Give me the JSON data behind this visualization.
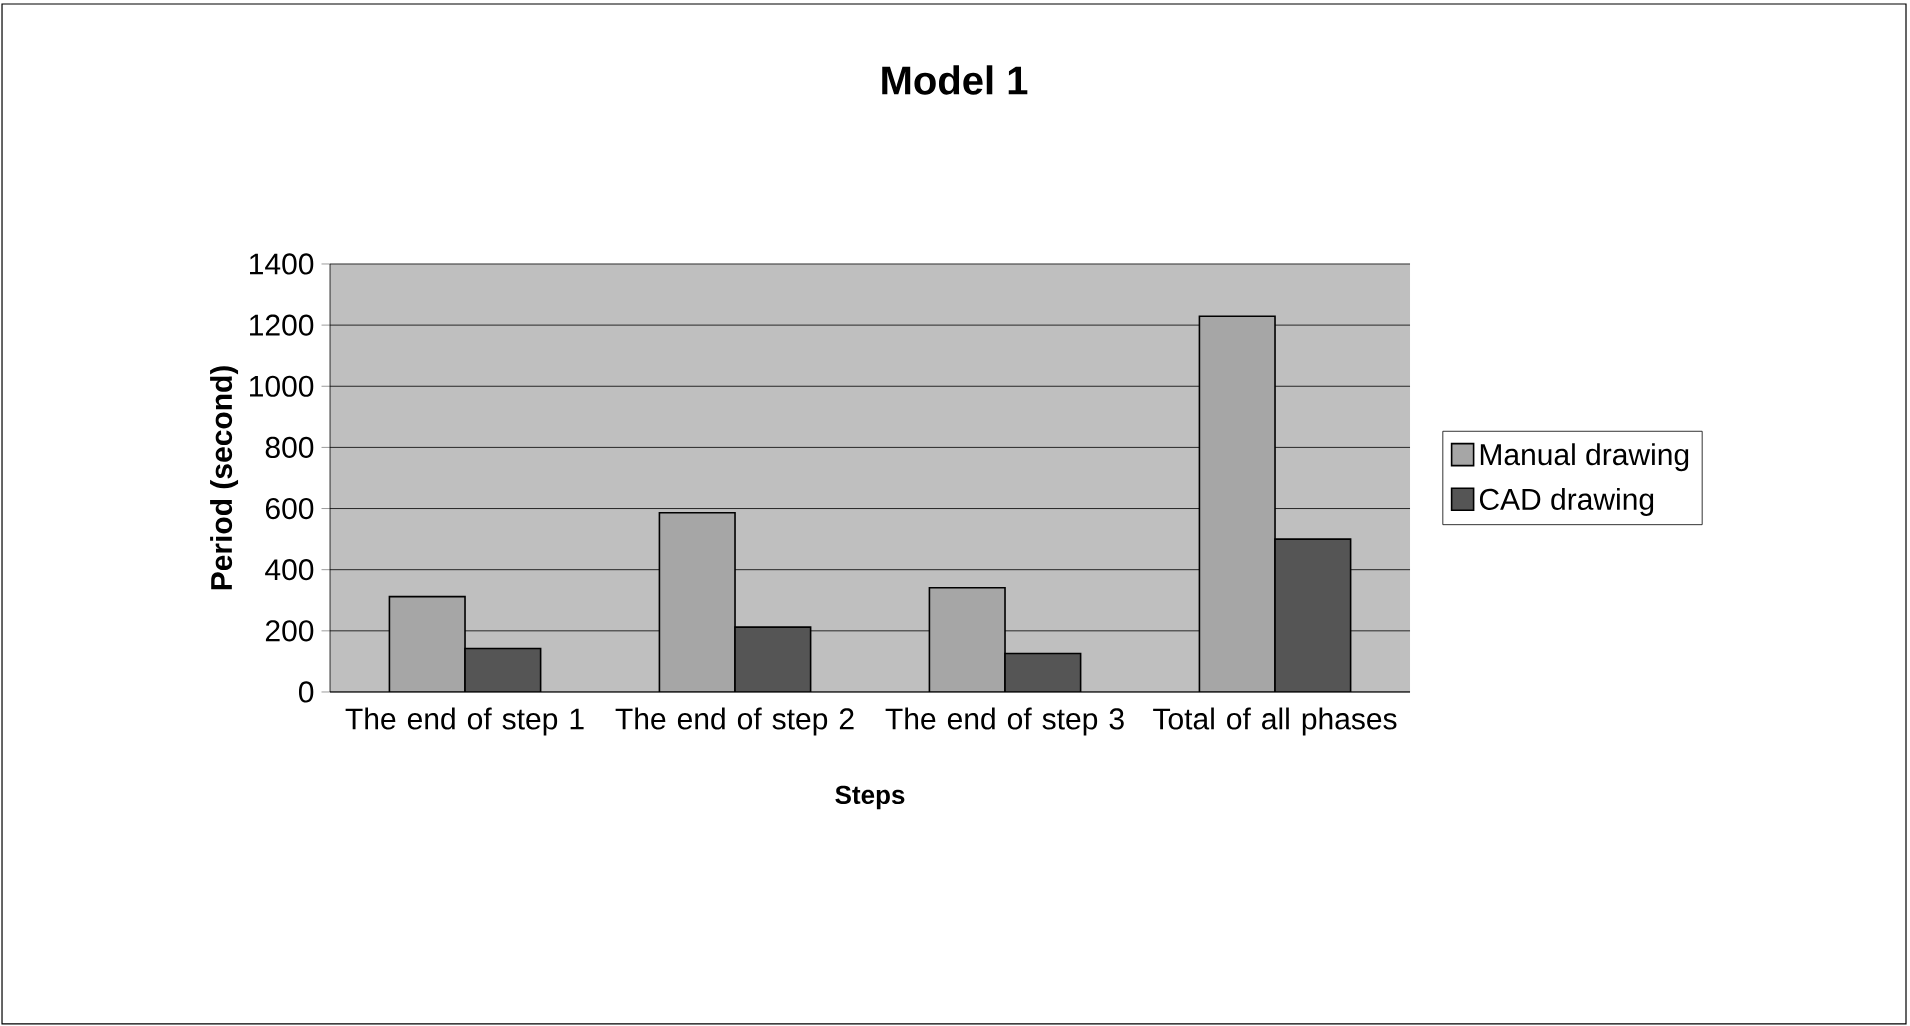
{
  "chart_data": {
    "type": "bar",
    "title": "Model 1",
    "xlabel": "Steps",
    "ylabel": "Period (second)",
    "categories": [
      "The end of step 1",
      "The end of step 2",
      "The end of step 3",
      "Total of all phases"
    ],
    "series": [
      {
        "name": "Manual drawing",
        "color": "#a6a6a6",
        "values": [
          312,
          586,
          341,
          1229
        ]
      },
      {
        "name": "CAD drawing",
        "color": "#555555",
        "values": [
          142,
          212,
          126,
          500
        ]
      }
    ],
    "ylim": [
      0,
      1400
    ],
    "yticks": [
      0,
      200,
      400,
      600,
      800,
      1000,
      1200,
      1400
    ],
    "grid": "y",
    "legend": "right"
  }
}
